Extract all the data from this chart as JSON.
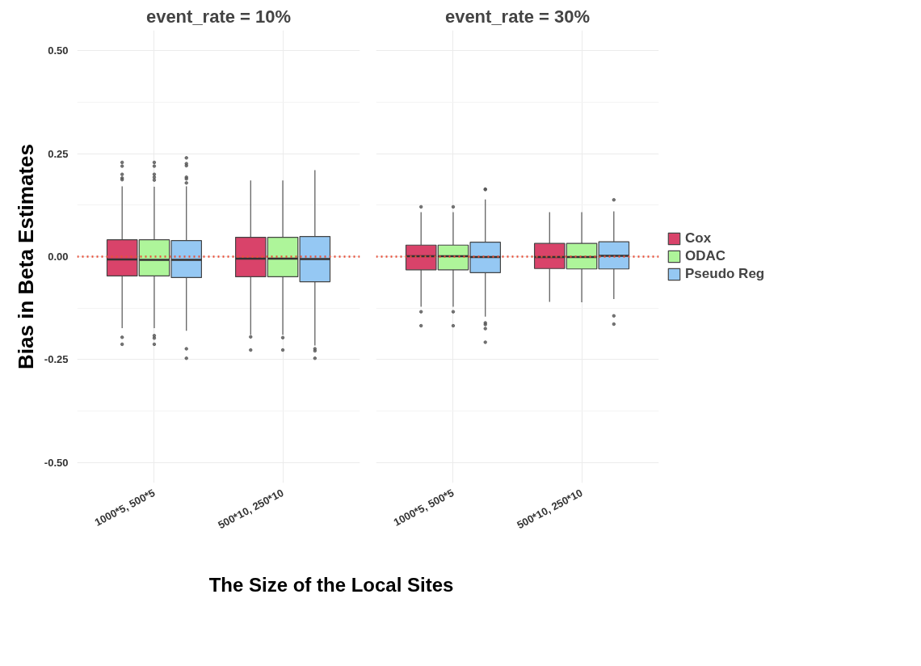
{
  "chart_data": [
    {
      "type": "box",
      "title": "event_rate = 10%",
      "ylabel": "Bias in Beta Estimates",
      "xlabel": "The Size of the Local Sites",
      "categories": [
        "1000*5, 500*5",
        "500*10, 250*10"
      ],
      "ylim": [
        -0.55,
        0.55
      ],
      "yticks": [
        {
          "value": -0.5,
          "label": "-0.50"
        },
        {
          "value": -0.25,
          "label": "-0.25"
        },
        {
          "value": 0,
          "label": "0.00"
        },
        {
          "value": 0.25,
          "label": "0.25"
        },
        {
          "value": 0.5,
          "label": "0.50"
        }
      ],
      "grid": true,
      "legend": false,
      "ref_lines": [
        {
          "axis": "y",
          "value": 0,
          "label": null,
          "color": "#e8503a",
          "line_style": "dotted"
        }
      ],
      "series": [
        {
          "color": "#d9436a",
          "boxes": [
            {
              "low": -0.174,
              "q1": -0.047,
              "median": -0.007,
              "q3": 0.041,
              "high": 0.171,
              "outliers": [
                0.229,
                0.22,
                0.2,
                0.191,
                0.187,
                -0.196,
                -0.213
              ]
            },
            {
              "low": -0.19,
              "q1": -0.049,
              "median": -0.005,
              "q3": 0.047,
              "high": 0.185,
              "outliers": [
                -0.195,
                -0.227
              ]
            }
          ]
        },
        {
          "color": "#aef59a",
          "boxes": [
            {
              "low": -0.174,
              "q1": -0.047,
              "median": -0.008,
              "q3": 0.041,
              "high": 0.17,
              "outliers": [
                0.229,
                0.22,
                0.2,
                0.193,
                0.186,
                -0.192,
                -0.198,
                -0.213
              ]
            },
            {
              "low": -0.19,
              "q1": -0.049,
              "median": -0.005,
              "q3": 0.047,
              "high": 0.185,
              "outliers": [
                -0.197,
                -0.227
              ]
            }
          ]
        },
        {
          "color": "#95c8f3",
          "boxes": [
            {
              "low": -0.18,
              "q1": -0.051,
              "median": -0.008,
              "q3": 0.039,
              "high": 0.171,
              "outliers": [
                0.24,
                0.226,
                0.221,
                0.193,
                0.189,
                0.179,
                -0.224,
                -0.247
              ]
            },
            {
              "low": -0.216,
              "q1": -0.061,
              "median": -0.006,
              "q3": 0.049,
              "high": 0.21,
              "outliers": [
                -0.224,
                -0.229,
                -0.247
              ]
            }
          ]
        }
      ]
    },
    {
      "type": "box",
      "title": "event_rate = 30%",
      "categories": [
        "1000*5, 500*5",
        "500*10, 250*10"
      ],
      "ylim": [
        -0.55,
        0.55
      ],
      "yticks": [
        -0.5,
        -0.25,
        0,
        0.25,
        0.5
      ],
      "tick_labels": "x",
      "grid": true,
      "legend": "right",
      "ref_lines": [
        {
          "axis": "y",
          "value": 0,
          "label": null,
          "color": "#e8503a",
          "line_style": "dotted"
        }
      ],
      "series": [
        {
          "name": "Cox",
          "color": "#d9436a",
          "boxes": [
            {
              "low": -0.122,
              "q1": -0.032,
              "median": 0.001,
              "q3": 0.028,
              "high": 0.108,
              "outliers": [
                0.121,
                -0.134,
                -0.168
              ]
            },
            {
              "low": -0.11,
              "q1": -0.029,
              "median": -0.001,
              "q3": 0.032,
              "high": 0.108
            }
          ]
        },
        {
          "name": "ODAC",
          "color": "#aef59a",
          "boxes": [
            {
              "low": -0.122,
              "q1": -0.032,
              "median": 0.001,
              "q3": 0.028,
              "high": 0.108,
              "outliers": [
                0.121,
                -0.134,
                -0.168
              ]
            },
            {
              "low": -0.111,
              "q1": -0.03,
              "median": -0.001,
              "q3": 0.032,
              "high": 0.108
            }
          ]
        },
        {
          "name": "Pseudo Reg",
          "color": "#95c8f3",
          "boxes": [
            {
              "low": -0.146,
              "q1": -0.039,
              "median": -0.001,
              "q3": 0.035,
              "high": 0.139,
              "outliers": [
                0.164,
                0.163,
                -0.161,
                -0.165,
                -0.175,
                -0.208
              ]
            },
            {
              "low": -0.103,
              "q1": -0.03,
              "median": 0.002,
              "q3": 0.036,
              "high": 0.11,
              "outliers": [
                0.138,
                -0.144,
                -0.164
              ]
            }
          ]
        }
      ]
    }
  ]
}
